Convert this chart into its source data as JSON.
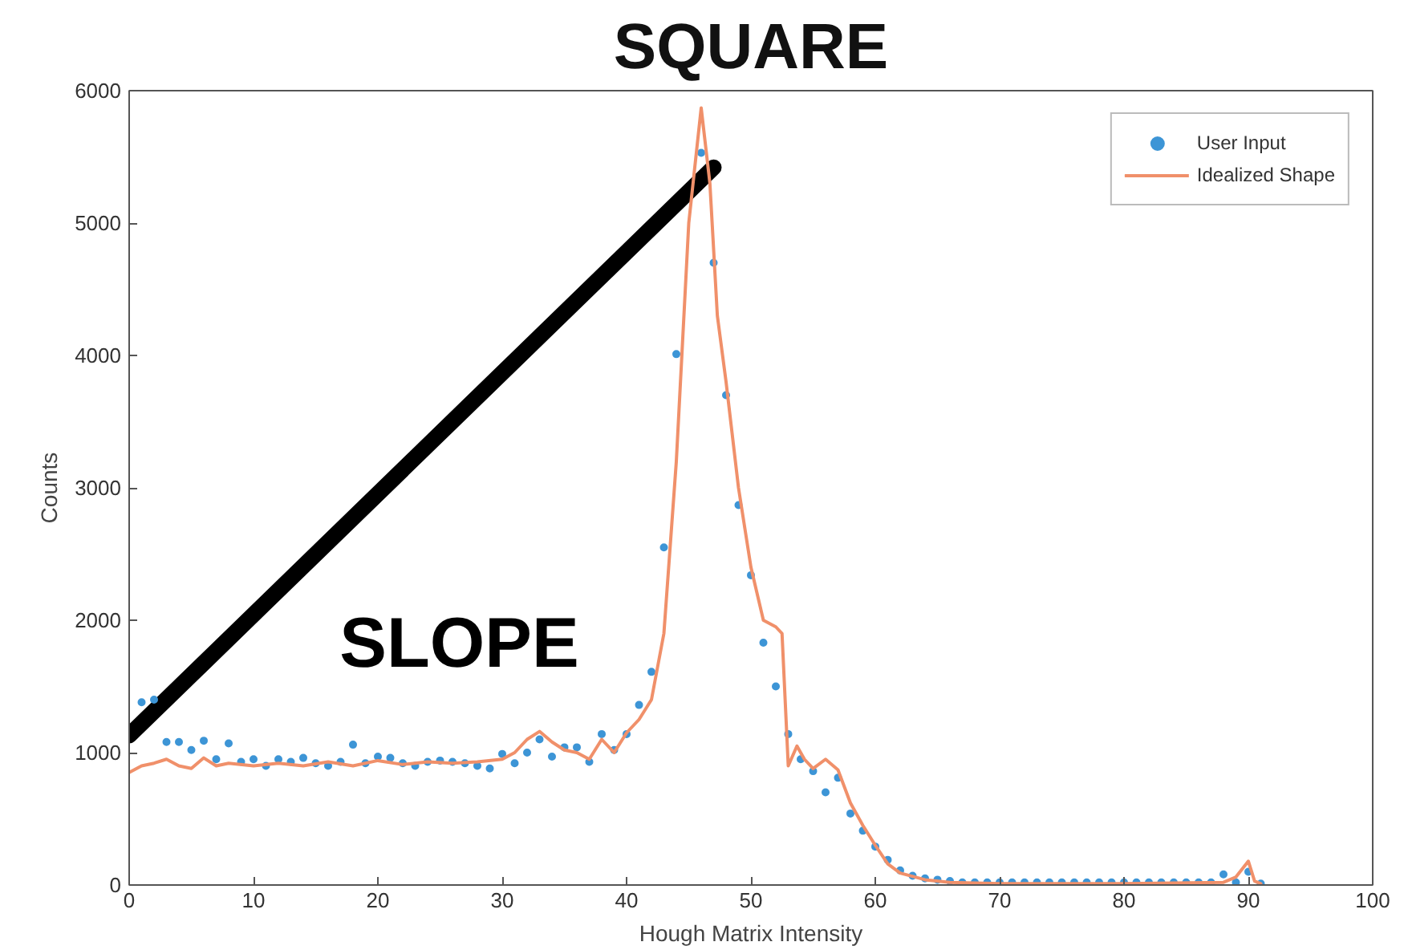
{
  "chart_data": {
    "type": "line",
    "title": "SQUARE",
    "xlabel": "Hough Matrix Intensity",
    "ylabel": "Counts",
    "xlim": [
      0,
      100
    ],
    "ylim": [
      0,
      6000
    ],
    "xticks": [
      0,
      10,
      20,
      30,
      40,
      50,
      60,
      70,
      80,
      90,
      100
    ],
    "yticks": [
      0,
      1000,
      2000,
      3000,
      4000,
      5000,
      6000
    ],
    "grid": false,
    "legend": "top right",
    "annotations": [
      "SLOPE"
    ],
    "series": [
      {
        "color": "#000000",
        "x": [
          0,
          47
        ],
        "values": [
          1130,
          5420
        ]
      },
      {
        "type": "scatter",
        "name": "User Input",
        "color": "#3d95d6",
        "marker": "circle",
        "x": [
          1,
          2,
          3,
          4,
          5,
          6,
          7,
          8,
          9,
          10,
          11,
          12,
          13,
          14,
          15,
          16,
          17,
          18,
          19,
          20,
          21,
          22,
          23,
          24,
          25,
          26,
          27,
          28,
          29,
          30,
          31,
          32,
          33,
          34,
          35,
          36,
          37,
          38,
          39,
          40,
          41,
          42,
          43,
          44,
          45,
          46,
          47,
          48,
          49,
          50,
          51,
          52,
          53,
          54,
          55,
          56,
          57,
          58,
          59,
          60,
          61,
          62,
          63,
          64,
          65,
          66,
          67,
          68,
          69,
          70,
          71,
          72,
          73,
          74,
          75,
          76,
          77,
          78,
          79,
          80,
          81,
          82,
          83,
          84,
          85,
          86,
          87,
          88,
          89,
          90,
          91
        ],
        "values": [
          1380,
          1400,
          1080,
          1080,
          1020,
          1090,
          950,
          1070,
          930,
          950,
          900,
          950,
          930,
          960,
          920,
          900,
          930,
          1060,
          920,
          970,
          960,
          920,
          900,
          930,
          940,
          930,
          920,
          900,
          880,
          990,
          920,
          1000,
          1100,
          970,
          1040,
          1040,
          930,
          1140,
          1020,
          1140,
          1360,
          1610,
          2550,
          4010,
          null,
          5530,
          4700,
          3700,
          2870,
          2340,
          1830,
          1500,
          1140,
          950,
          860,
          700,
          810,
          540,
          410,
          290,
          190,
          110,
          70,
          50,
          40,
          30,
          20,
          20,
          20,
          20,
          20,
          20,
          20,
          20,
          20,
          20,
          20,
          20,
          20,
          20,
          20,
          20,
          20,
          20,
          20,
          20,
          20,
          80,
          20,
          100,
          10
        ]
      },
      {
        "type": "line",
        "name": "Idealized Shape",
        "color": "#f0906a",
        "x": [
          0,
          1,
          2,
          3,
          4,
          5,
          6,
          7,
          8,
          10,
          12,
          14,
          16,
          18,
          20,
          22,
          24,
          26,
          28,
          30,
          31,
          32,
          33,
          34,
          35,
          36,
          37,
          38,
          39,
          40,
          41,
          42,
          43,
          44,
          45,
          46,
          46.7,
          47.3,
          48,
          49,
          50,
          51,
          52,
          52.5,
          53,
          53.7,
          54.3,
          55,
          56,
          57,
          58,
          59,
          60,
          61,
          62,
          64,
          66,
          70,
          80,
          88,
          89,
          90,
          90.5,
          91
        ],
        "values": [
          850,
          900,
          920,
          950,
          900,
          880,
          960,
          900,
          920,
          900,
          920,
          900,
          930,
          900,
          940,
          910,
          930,
          920,
          930,
          950,
          1000,
          1100,
          1160,
          1080,
          1020,
          1000,
          950,
          1100,
          1000,
          1150,
          1250,
          1400,
          1900,
          3200,
          5000,
          5870,
          5300,
          4300,
          3800,
          3000,
          2400,
          2000,
          1950,
          1900,
          900,
          1050,
          950,
          880,
          950,
          870,
          620,
          450,
          300,
          160,
          90,
          40,
          20,
          10,
          10,
          20,
          60,
          180,
          30,
          10
        ]
      }
    ]
  }
}
